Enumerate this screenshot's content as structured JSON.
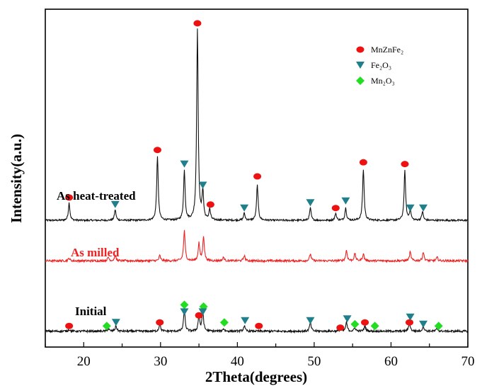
{
  "chart_data": {
    "type": "line",
    "xlabel": "2Theta(degrees)",
    "ylabel": "Intensity(a.u.)",
    "xlim": [
      15,
      70
    ],
    "xticks": [
      20,
      30,
      40,
      50,
      60,
      70
    ],
    "y_ticks_shown": false,
    "grid": false,
    "legend_position": "top-right",
    "legend": [
      {
        "name": "MnZnFe₂",
        "marker": "circle",
        "color": "#ee1111"
      },
      {
        "name": "Fe₂O₃",
        "marker": "triangle-down",
        "color": "#1f7f8a"
      },
      {
        "name": "Mn₂O₃",
        "marker": "diamond",
        "color": "#22dd22"
      }
    ],
    "series": [
      {
        "name": "As heat-treated",
        "color": "#111111",
        "label_color": "#000000",
        "baseline": 12,
        "noise": 0.5,
        "peaks": [
          {
            "x": 18.1,
            "h": 10
          },
          {
            "x": 24.1,
            "h": 6
          },
          {
            "x": 29.6,
            "h": 36
          },
          {
            "x": 33.1,
            "h": 28
          },
          {
            "x": 34.8,
            "h": 108
          },
          {
            "x": 35.5,
            "h": 16
          },
          {
            "x": 36.4,
            "h": 6
          },
          {
            "x": 40.9,
            "h": 4
          },
          {
            "x": 42.6,
            "h": 20
          },
          {
            "x": 49.5,
            "h": 7
          },
          {
            "x": 52.8,
            "h": 4
          },
          {
            "x": 54.1,
            "h": 7
          },
          {
            "x": 56.4,
            "h": 29
          },
          {
            "x": 61.8,
            "h": 28
          },
          {
            "x": 62.5,
            "h": 6
          },
          {
            "x": 64.1,
            "h": 5
          }
        ],
        "annotations": [
          {
            "x": 18.1,
            "y": 25,
            "type": "circle"
          },
          {
            "x": 24.1,
            "y": 21,
            "type": "triangle-down"
          },
          {
            "x": 29.6,
            "y": 52,
            "type": "circle"
          },
          {
            "x": 33.1,
            "y": 44,
            "type": "triangle-down"
          },
          {
            "x": 34.8,
            "y": 124,
            "type": "circle"
          },
          {
            "x": 35.5,
            "y": 32,
            "type": "triangle-down"
          },
          {
            "x": 36.5,
            "y": 21,
            "type": "circle"
          },
          {
            "x": 40.9,
            "y": 19,
            "type": "triangle-down"
          },
          {
            "x": 42.6,
            "y": 37,
            "type": "circle"
          },
          {
            "x": 49.5,
            "y": 22,
            "type": "triangle-down"
          },
          {
            "x": 52.8,
            "y": 19,
            "type": "circle"
          },
          {
            "x": 54.1,
            "y": 23,
            "type": "triangle-down"
          },
          {
            "x": 56.4,
            "y": 45,
            "type": "circle"
          },
          {
            "x": 61.8,
            "y": 44,
            "type": "circle"
          },
          {
            "x": 62.5,
            "y": 19,
            "type": "triangle-down"
          },
          {
            "x": 64.2,
            "y": 19,
            "type": "triangle-down"
          }
        ]
      },
      {
        "name": "As milled",
        "color": "#ee2222",
        "label_color": "#ee2222",
        "baseline": -11,
        "noise": 0.6,
        "peaks": [
          {
            "x": 18.1,
            "h": 1.5
          },
          {
            "x": 23.2,
            "h": 2
          },
          {
            "x": 24.1,
            "h": 3
          },
          {
            "x": 29.9,
            "h": 3
          },
          {
            "x": 33.1,
            "h": 17
          },
          {
            "x": 35.0,
            "h": 10
          },
          {
            "x": 35.6,
            "h": 14
          },
          {
            "x": 38.2,
            "h": 2
          },
          {
            "x": 40.9,
            "h": 3
          },
          {
            "x": 49.5,
            "h": 4
          },
          {
            "x": 54.2,
            "h": 6
          },
          {
            "x": 55.3,
            "h": 4
          },
          {
            "x": 56.4,
            "h": 4
          },
          {
            "x": 62.5,
            "h": 5
          },
          {
            "x": 64.2,
            "h": 5
          },
          {
            "x": 66.0,
            "h": 2
          }
        ],
        "annotations": []
      },
      {
        "name": "Initial",
        "color": "#111111",
        "label_color": "#000000",
        "baseline": -51,
        "noise": 0.6,
        "peaks": [
          {
            "x": 18.1,
            "h": 1
          },
          {
            "x": 23.2,
            "h": 1.5
          },
          {
            "x": 24.2,
            "h": 3
          },
          {
            "x": 29.9,
            "h": 4
          },
          {
            "x": 33.1,
            "h": 12
          },
          {
            "x": 35.0,
            "h": 9
          },
          {
            "x": 35.5,
            "h": 11
          },
          {
            "x": 38.2,
            "h": 1.5
          },
          {
            "x": 40.9,
            "h": 3
          },
          {
            "x": 49.5,
            "h": 5
          },
          {
            "x": 53.4,
            "h": 1.5
          },
          {
            "x": 54.2,
            "h": 5
          },
          {
            "x": 55.3,
            "h": 2
          },
          {
            "x": 56.6,
            "h": 3
          },
          {
            "x": 62.4,
            "h": 5
          },
          {
            "x": 64.2,
            "h": 3
          },
          {
            "x": 66.0,
            "h": 1.5
          }
        ],
        "annotations": [
          {
            "x": 18.1,
            "y": -48,
            "type": "circle"
          },
          {
            "x": 23.0,
            "y": -48,
            "type": "diamond"
          },
          {
            "x": 24.2,
            "y": -46,
            "type": "triangle-down"
          },
          {
            "x": 29.9,
            "y": -46,
            "type": "circle"
          },
          {
            "x": 33.1,
            "y": -36,
            "type": "diamond"
          },
          {
            "x": 33.1,
            "y": -40,
            "type": "triangle-down"
          },
          {
            "x": 35.0,
            "y": -42,
            "type": "circle"
          },
          {
            "x": 35.6,
            "y": -37,
            "type": "diamond"
          },
          {
            "x": 35.5,
            "y": -40,
            "type": "triangle-down"
          },
          {
            "x": 38.3,
            "y": -46,
            "type": "diamond"
          },
          {
            "x": 41.0,
            "y": -45,
            "type": "triangle-down"
          },
          {
            "x": 42.8,
            "y": -48,
            "type": "circle"
          },
          {
            "x": 49.5,
            "y": -45,
            "type": "triangle-down"
          },
          {
            "x": 53.4,
            "y": -49,
            "type": "circle"
          },
          {
            "x": 54.3,
            "y": -44,
            "type": "triangle-down"
          },
          {
            "x": 55.3,
            "y": -47,
            "type": "diamond"
          },
          {
            "x": 56.6,
            "y": -46,
            "type": "circle"
          },
          {
            "x": 57.9,
            "y": -48,
            "type": "diamond"
          },
          {
            "x": 62.4,
            "y": -46,
            "type": "circle"
          },
          {
            "x": 62.5,
            "y": -43,
            "type": "triangle-down"
          },
          {
            "x": 64.2,
            "y": -47,
            "type": "triangle-down"
          },
          {
            "x": 66.2,
            "y": -48,
            "type": "diamond"
          }
        ]
      }
    ]
  }
}
